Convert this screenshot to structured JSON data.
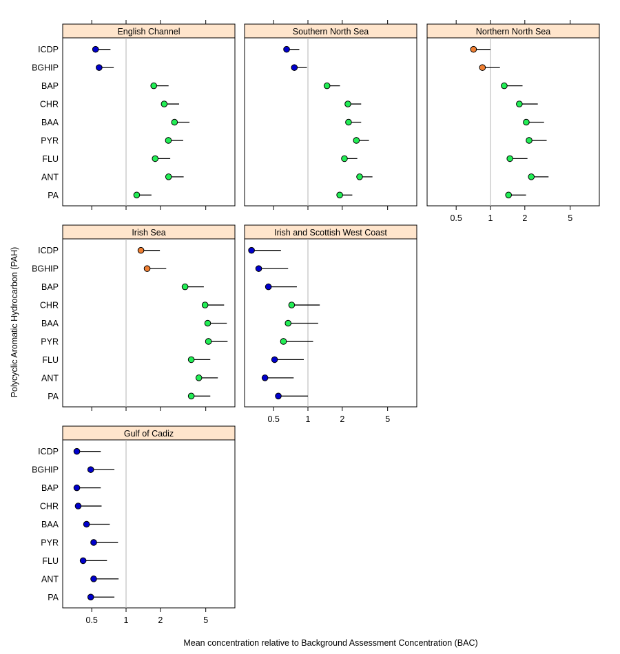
{
  "chart_data": {
    "type": "dotplot",
    "title": "",
    "xlabel": "Mean concentration relative to Background Assessment Concentration (BAC)",
    "ylabel": "Polycyclic Aromatic Hydrocarbon (PAH)",
    "x_scale": "log",
    "xlim": [
      0.28,
      9.0
    ],
    "x_ticks": [
      0.5,
      1,
      2,
      5
    ],
    "x_tick_labels": [
      "0.5",
      "1",
      "2",
      "5"
    ],
    "reference_line": 1,
    "grid": false,
    "legend": "none",
    "categories": [
      "ICDP",
      "BGHIP",
      "BAP",
      "CHR",
      "BAA",
      "PYR",
      "FLU",
      "ANT",
      "PA"
    ],
    "status_colors": {
      "blue": "#0000CD",
      "orange": "#F07F32",
      "green": "#22EE55"
    },
    "panel_strip_color": "#FFE5CC",
    "reference_line_color": "#B3B3B3",
    "panels": [
      {
        "name": "English Channel",
        "series": [
          {
            "category": "ICDP",
            "mean": 0.54,
            "upper": 0.73,
            "status": "blue"
          },
          {
            "category": "BGHIP",
            "mean": 0.58,
            "upper": 0.78,
            "status": "blue"
          },
          {
            "category": "BAP",
            "mean": 1.75,
            "upper": 2.36,
            "status": "green"
          },
          {
            "category": "CHR",
            "mean": 2.16,
            "upper": 2.92,
            "status": "green"
          },
          {
            "category": "BAA",
            "mean": 2.66,
            "upper": 3.6,
            "status": "green"
          },
          {
            "category": "PYR",
            "mean": 2.35,
            "upper": 3.17,
            "status": "green"
          },
          {
            "category": "FLU",
            "mean": 1.8,
            "upper": 2.44,
            "status": "green"
          },
          {
            "category": "ANT",
            "mean": 2.36,
            "upper": 3.2,
            "status": "green"
          },
          {
            "category": "PA",
            "mean": 1.24,
            "upper": 1.67,
            "status": "green"
          }
        ]
      },
      {
        "name": "Southern North Sea",
        "series": [
          {
            "category": "ICDP",
            "mean": 0.65,
            "upper": 0.84,
            "status": "blue"
          },
          {
            "category": "BGHIP",
            "mean": 0.76,
            "upper": 0.98,
            "status": "blue"
          },
          {
            "category": "BAP",
            "mean": 1.47,
            "upper": 1.91,
            "status": "green"
          },
          {
            "category": "CHR",
            "mean": 2.24,
            "upper": 2.93,
            "status": "green"
          },
          {
            "category": "BAA",
            "mean": 2.27,
            "upper": 2.93,
            "status": "green"
          },
          {
            "category": "PYR",
            "mean": 2.66,
            "upper": 3.43,
            "status": "green"
          },
          {
            "category": "FLU",
            "mean": 2.09,
            "upper": 2.71,
            "status": "green"
          },
          {
            "category": "ANT",
            "mean": 2.84,
            "upper": 3.68,
            "status": "green"
          },
          {
            "category": "PA",
            "mean": 1.9,
            "upper": 2.45,
            "status": "green"
          }
        ]
      },
      {
        "name": "Northern North Sea",
        "series": [
          {
            "category": "ICDP",
            "mean": 0.71,
            "upper": 1.0,
            "status": "orange"
          },
          {
            "category": "BGHIP",
            "mean": 0.85,
            "upper": 1.21,
            "status": "orange"
          },
          {
            "category": "BAP",
            "mean": 1.32,
            "upper": 1.91,
            "status": "green"
          },
          {
            "category": "CHR",
            "mean": 1.79,
            "upper": 2.6,
            "status": "green"
          },
          {
            "category": "BAA",
            "mean": 2.06,
            "upper": 2.95,
            "status": "green"
          },
          {
            "category": "PYR",
            "mean": 2.18,
            "upper": 3.11,
            "status": "green"
          },
          {
            "category": "FLU",
            "mean": 1.48,
            "upper": 2.11,
            "status": "green"
          },
          {
            "category": "ANT",
            "mean": 2.28,
            "upper": 3.23,
            "status": "green"
          },
          {
            "category": "PA",
            "mean": 1.44,
            "upper": 2.05,
            "status": "green"
          }
        ]
      },
      {
        "name": "Irish Sea",
        "series": [
          {
            "category": "ICDP",
            "mean": 1.35,
            "upper": 1.98,
            "status": "orange"
          },
          {
            "category": "BGHIP",
            "mean": 1.53,
            "upper": 2.25,
            "status": "orange"
          },
          {
            "category": "BAP",
            "mean": 3.29,
            "upper": 4.81,
            "status": "green"
          },
          {
            "category": "CHR",
            "mean": 4.93,
            "upper": 7.24,
            "status": "green"
          },
          {
            "category": "BAA",
            "mean": 5.2,
            "upper": 7.65,
            "status": "green"
          },
          {
            "category": "PYR",
            "mean": 5.28,
            "upper": 7.77,
            "status": "green"
          },
          {
            "category": "FLU",
            "mean": 3.73,
            "upper": 5.48,
            "status": "green"
          },
          {
            "category": "ANT",
            "mean": 4.35,
            "upper": 6.38,
            "status": "green"
          },
          {
            "category": "PA",
            "mean": 3.73,
            "upper": 5.48,
            "status": "green"
          }
        ]
      },
      {
        "name": "Irish and Scottish West Coast",
        "series": [
          {
            "category": "ICDP",
            "mean": 0.32,
            "upper": 0.58,
            "status": "blue"
          },
          {
            "category": "BGHIP",
            "mean": 0.37,
            "upper": 0.67,
            "status": "blue"
          },
          {
            "category": "BAP",
            "mean": 0.45,
            "upper": 0.8,
            "status": "blue"
          },
          {
            "category": "CHR",
            "mean": 0.72,
            "upper": 1.27,
            "status": "green"
          },
          {
            "category": "BAA",
            "mean": 0.67,
            "upper": 1.23,
            "status": "green"
          },
          {
            "category": "PYR",
            "mean": 0.61,
            "upper": 1.11,
            "status": "green"
          },
          {
            "category": "FLU",
            "mean": 0.51,
            "upper": 0.92,
            "status": "blue"
          },
          {
            "category": "ANT",
            "mean": 0.42,
            "upper": 0.75,
            "status": "blue"
          },
          {
            "category": "PA",
            "mean": 0.55,
            "upper": 1.0,
            "status": "blue"
          }
        ]
      },
      {
        "name": "Gulf of Cadiz",
        "series": [
          {
            "category": "ICDP",
            "mean": 0.37,
            "upper": 0.6,
            "status": "blue"
          },
          {
            "category": "BGHIP",
            "mean": 0.49,
            "upper": 0.79,
            "status": "blue"
          },
          {
            "category": "BAP",
            "mean": 0.37,
            "upper": 0.6,
            "status": "blue"
          },
          {
            "category": "CHR",
            "mean": 0.38,
            "upper": 0.61,
            "status": "blue"
          },
          {
            "category": "BAA",
            "mean": 0.45,
            "upper": 0.72,
            "status": "blue"
          },
          {
            "category": "PYR",
            "mean": 0.52,
            "upper": 0.85,
            "status": "blue"
          },
          {
            "category": "FLU",
            "mean": 0.42,
            "upper": 0.68,
            "status": "blue"
          },
          {
            "category": "ANT",
            "mean": 0.52,
            "upper": 0.86,
            "status": "blue"
          },
          {
            "category": "PA",
            "mean": 0.49,
            "upper": 0.79,
            "status": "blue"
          }
        ]
      }
    ]
  }
}
